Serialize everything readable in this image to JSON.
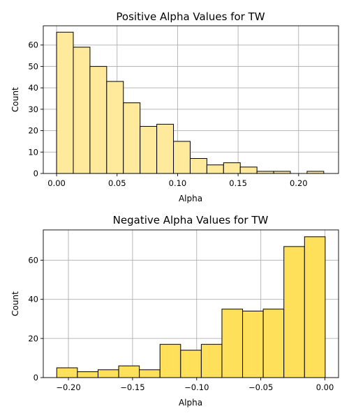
{
  "chart_data": [
    {
      "type": "bar",
      "title": "Positive Alpha Values for TW",
      "xlabel": "Alpha",
      "ylabel": "Count",
      "xlim": [
        -0.011,
        0.233
      ],
      "ylim": [
        0,
        69
      ],
      "xticks": [
        0.0,
        0.05,
        0.1,
        0.15,
        0.2
      ],
      "xtick_labels": [
        "0.00",
        "0.05",
        "0.10",
        "0.15",
        "0.20"
      ],
      "yticks": [
        0,
        10,
        20,
        30,
        40,
        50,
        60
      ],
      "ytick_labels": [
        "0",
        "10",
        "20",
        "30",
        "40",
        "50",
        "60"
      ],
      "bin_edges": [
        0.0,
        0.0138,
        0.0276,
        0.0414,
        0.0552,
        0.069,
        0.0828,
        0.0966,
        0.1104,
        0.1242,
        0.138,
        0.1518,
        0.1656,
        0.1794,
        0.1932,
        0.207,
        0.2208
      ],
      "values": [
        66,
        59,
        50,
        43,
        33,
        22,
        23,
        15,
        7,
        4,
        5,
        3,
        1,
        1,
        0,
        1
      ],
      "bar_color": "#ffe99a",
      "grid": true
    },
    {
      "type": "bar",
      "title": "Negative Alpha Values for TW",
      "xlabel": "Alpha",
      "ylabel": "Count",
      "xlim": [
        -0.2196,
        0.0106
      ],
      "ylim": [
        0,
        75.5
      ],
      "xticks": [
        -0.2,
        -0.15,
        -0.1,
        -0.05,
        0.0
      ],
      "xtick_labels": [
        "−0.20",
        "−0.15",
        "−0.10",
        "−0.05",
        "0.00"
      ],
      "yticks": [
        0,
        20,
        40,
        60
      ],
      "ytick_labels": [
        "0",
        "20",
        "40",
        "60"
      ],
      "bin_edges": [
        -0.2091,
        -0.193,
        -0.1769,
        -0.1608,
        -0.1447,
        -0.1286,
        -0.1125,
        -0.0964,
        -0.0803,
        -0.0642,
        -0.0481,
        -0.032,
        -0.0159,
        0.0002
      ],
      "values": [
        5,
        3,
        4,
        6,
        4,
        17,
        14,
        17,
        35,
        34,
        35,
        67,
        72
      ],
      "bar_color": "#ffe05a",
      "grid": true
    }
  ]
}
